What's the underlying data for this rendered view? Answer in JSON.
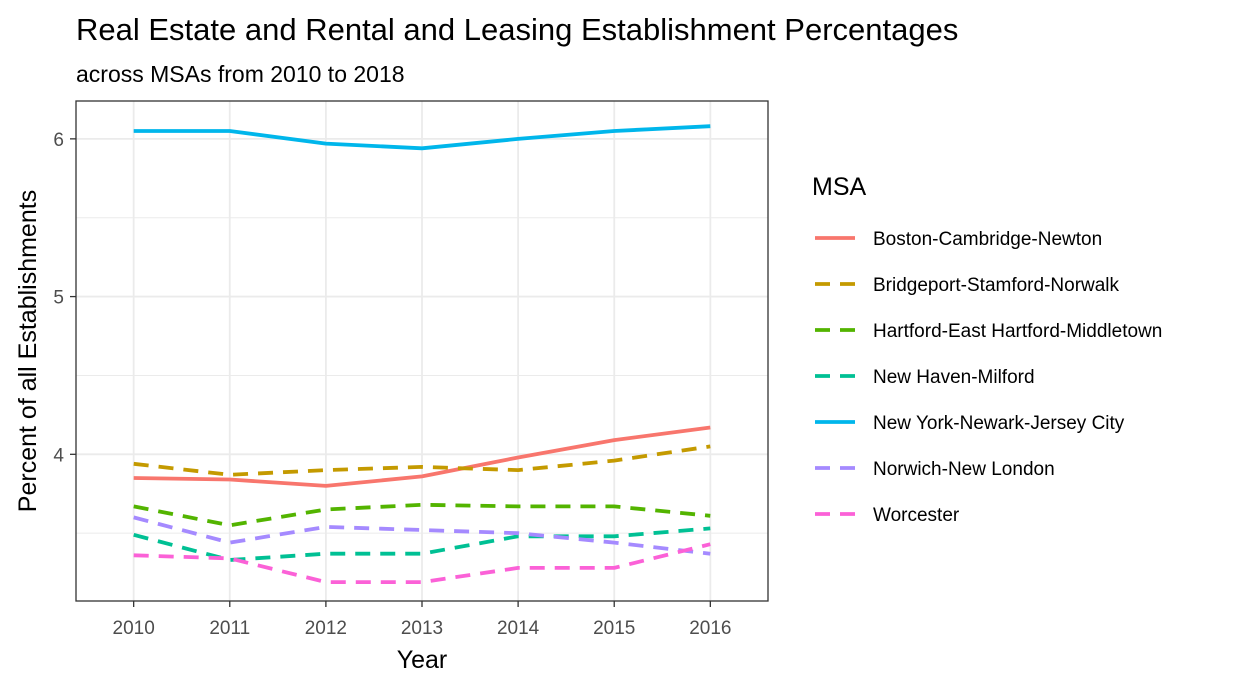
{
  "chart_data": {
    "type": "line",
    "title": "Real Estate and Rental and Leasing Establishment Percentages",
    "subtitle": "across MSAs from 2010 to 2018",
    "xlabel": "Year",
    "ylabel": "Percent of all Establishments",
    "x": [
      2010,
      2011,
      2012,
      2013,
      2014,
      2015,
      2016
    ],
    "xlim": [
      2009.4,
      2016.6
    ],
    "ylim": [
      3.07,
      6.24
    ],
    "y_ticks": [
      4,
      5,
      6
    ],
    "grid": true,
    "legend": {
      "title": "MSA",
      "position": "right"
    },
    "series": [
      {
        "name": "Boston-Cambridge-Newton",
        "color": "#F8766D",
        "dash": "solid",
        "values": [
          3.85,
          3.84,
          3.8,
          3.86,
          3.98,
          4.09,
          4.17
        ]
      },
      {
        "name": "Bridgeport-Stamford-Norwalk",
        "color": "#C49A00",
        "dash": "dashed",
        "values": [
          3.94,
          3.87,
          3.9,
          3.92,
          3.9,
          3.96,
          4.05
        ]
      },
      {
        "name": "Hartford-East Hartford-Middletown",
        "color": "#53B400",
        "dash": "dashed",
        "values": [
          3.67,
          3.55,
          3.65,
          3.68,
          3.67,
          3.67,
          3.61
        ]
      },
      {
        "name": "New Haven-Milford",
        "color": "#00C094",
        "dash": "dashed",
        "values": [
          3.49,
          3.33,
          3.37,
          3.37,
          3.48,
          3.48,
          3.53
        ]
      },
      {
        "name": "New York-Newark-Jersey City",
        "color": "#00B6EB",
        "dash": "solid",
        "values": [
          6.05,
          6.05,
          5.97,
          5.94,
          6.0,
          6.05,
          6.08
        ]
      },
      {
        "name": "Norwich-New London",
        "color": "#A58AFF",
        "dash": "dashed",
        "values": [
          3.6,
          3.44,
          3.54,
          3.52,
          3.5,
          3.44,
          3.37
        ]
      },
      {
        "name": "Worcester",
        "color": "#FB61D7",
        "dash": "dashed",
        "values": [
          3.36,
          3.34,
          3.19,
          3.19,
          3.28,
          3.28,
          3.43
        ]
      }
    ]
  }
}
